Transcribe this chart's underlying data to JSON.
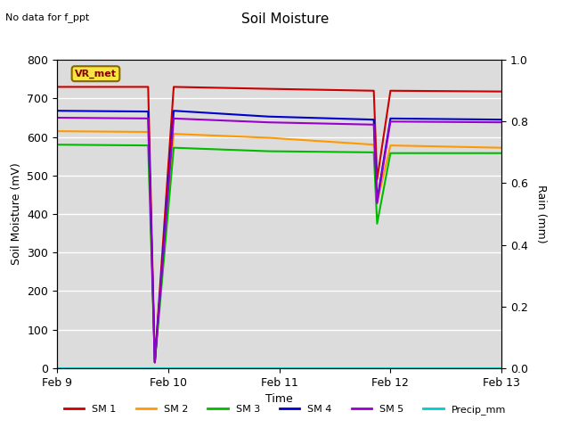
{
  "title": "Soil Moisture",
  "subtitle": "No data for f_ppt",
  "xlabel": "Time",
  "ylabel_left": "Soil Moisture (mV)",
  "ylabel_right": "Rain (mm)",
  "ylim_left": [
    0,
    800
  ],
  "ylim_right": [
    0.0,
    1.0
  ],
  "yticks_left": [
    0,
    100,
    200,
    300,
    400,
    500,
    600,
    700,
    800
  ],
  "yticks_right": [
    0.0,
    0.2,
    0.4,
    0.6,
    0.8,
    1.0
  ],
  "background_color": "#dcdcdc",
  "legend_box_text": "VR_met",
  "series": {
    "SM1": {
      "color": "#cc0000",
      "label": "SM 1",
      "points": [
        [
          0.0,
          730
        ],
        [
          0.82,
          730
        ],
        [
          0.88,
          15
        ],
        [
          1.05,
          730
        ],
        [
          1.9,
          725
        ],
        [
          2.85,
          720
        ],
        [
          2.88,
          490
        ],
        [
          3.0,
          720
        ],
        [
          4.0,
          718
        ]
      ]
    },
    "SM2": {
      "color": "#ff9900",
      "label": "SM 2",
      "points": [
        [
          0.0,
          615
        ],
        [
          0.82,
          613
        ],
        [
          0.88,
          15
        ],
        [
          1.05,
          608
        ],
        [
          1.9,
          598
        ],
        [
          2.85,
          580
        ],
        [
          2.88,
          430
        ],
        [
          3.0,
          578
        ],
        [
          4.0,
          572
        ]
      ]
    },
    "SM3": {
      "color": "#00bb00",
      "label": "SM 3",
      "points": [
        [
          0.0,
          580
        ],
        [
          0.82,
          578
        ],
        [
          0.88,
          15
        ],
        [
          1.05,
          572
        ],
        [
          1.9,
          563
        ],
        [
          2.85,
          560
        ],
        [
          2.88,
          375
        ],
        [
          3.0,
          558
        ],
        [
          4.0,
          558
        ]
      ]
    },
    "SM4": {
      "color": "#0000cc",
      "label": "SM 4",
      "points": [
        [
          0.0,
          668
        ],
        [
          0.82,
          666
        ],
        [
          0.88,
          15
        ],
        [
          1.05,
          668
        ],
        [
          1.9,
          653
        ],
        [
          2.85,
          645
        ],
        [
          2.88,
          435
        ],
        [
          3.0,
          648
        ],
        [
          4.0,
          645
        ]
      ]
    },
    "SM5": {
      "color": "#9900cc",
      "label": "SM 5",
      "points": [
        [
          0.0,
          650
        ],
        [
          0.82,
          648
        ],
        [
          0.88,
          15
        ],
        [
          1.05,
          648
        ],
        [
          1.9,
          638
        ],
        [
          2.85,
          632
        ],
        [
          2.88,
          428
        ],
        [
          3.0,
          640
        ],
        [
          4.0,
          638
        ]
      ]
    },
    "Precip": {
      "color": "#00cccc",
      "label": "Precip_mm",
      "points": [
        [
          0.0,
          0.0
        ],
        [
          4.0,
          0.0
        ]
      ]
    }
  },
  "xtick_positions": [
    0,
    1,
    2,
    3,
    4
  ],
  "xtick_labels": [
    "Feb 9",
    "Feb 10",
    "Feb 11",
    "Feb 12",
    "Feb 13"
  ],
  "right_tick_marks": [
    0.1,
    0.2,
    0.3,
    0.4,
    0.5,
    0.6,
    0.7,
    0.8,
    0.9,
    1.0
  ]
}
